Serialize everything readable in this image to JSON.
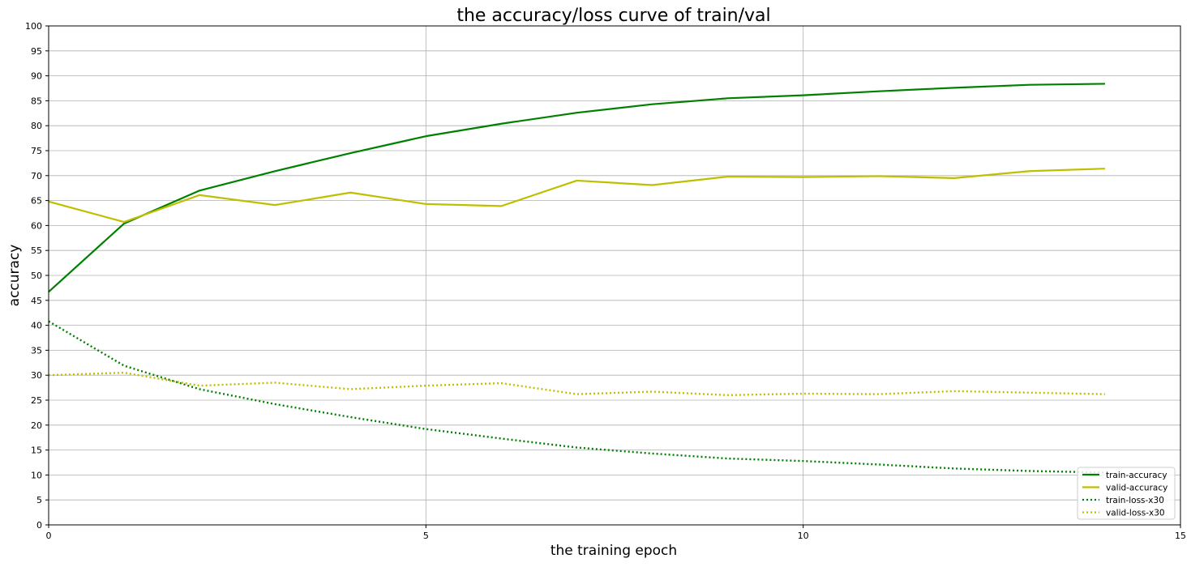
{
  "chart_data": {
    "type": "line",
    "title": "the accuracy/loss curve of train/val",
    "xlabel": "the training epoch",
    "ylabel": "accuracy",
    "xlim": [
      0,
      15
    ],
    "ylim": [
      0,
      100
    ],
    "xticks": [
      0,
      5,
      10,
      15
    ],
    "yticks": [
      0,
      5,
      10,
      15,
      20,
      25,
      30,
      35,
      40,
      45,
      50,
      55,
      60,
      65,
      70,
      75,
      80,
      85,
      90,
      95,
      100
    ],
    "grid": true,
    "legend_position": "lower-right",
    "x": [
      0,
      1,
      2,
      3,
      4,
      5,
      6,
      7,
      8,
      9,
      10,
      11,
      12,
      13,
      14
    ],
    "series": [
      {
        "name": "train-accuracy",
        "color": "#008000",
        "style": "solid",
        "values": [
          46.7,
          60.4,
          67.0,
          70.9,
          74.5,
          77.9,
          80.4,
          82.6,
          84.3,
          85.5,
          86.1,
          86.9,
          87.6,
          88.2,
          88.4
        ]
      },
      {
        "name": "valid-accuracy",
        "color": "#bfbf00",
        "style": "solid",
        "values": [
          64.8,
          60.7,
          66.1,
          64.1,
          66.6,
          64.3,
          63.9,
          69.0,
          68.1,
          69.8,
          69.7,
          69.9,
          69.5,
          70.9,
          71.4
        ]
      },
      {
        "name": "train-loss-x30",
        "color": "#008000",
        "style": "dotted",
        "values": [
          40.8,
          31.9,
          27.2,
          24.2,
          21.6,
          19.2,
          17.3,
          15.5,
          14.3,
          13.3,
          12.8,
          12.1,
          11.3,
          10.8,
          10.5
        ]
      },
      {
        "name": "valid-loss-x30",
        "color": "#bfbf00",
        "style": "dotted",
        "values": [
          30.0,
          30.5,
          27.9,
          28.5,
          27.2,
          27.9,
          28.4,
          26.2,
          26.7,
          26.0,
          26.3,
          26.2,
          26.8,
          26.5,
          26.2
        ]
      }
    ]
  }
}
